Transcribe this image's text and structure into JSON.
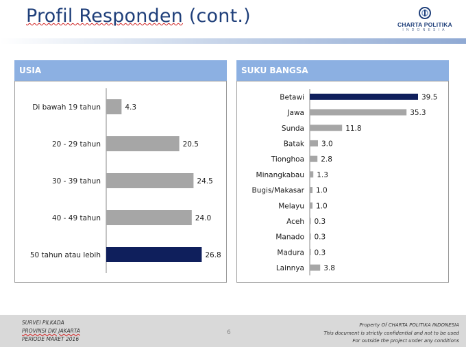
{
  "header": {
    "title": "Profil Responden",
    "title_suffix": " (cont.)",
    "logo_name": "CHARTA POLITIKA",
    "logo_sub": "INDONESIA",
    "logo_icon": "charta-logo-icon"
  },
  "colors": {
    "highlight_bar": "#0f1f5c",
    "default_bar": "#a6a6a6",
    "panel_header": "#8cb0e2",
    "title": "#1f3f7a"
  },
  "chart_data": [
    {
      "type": "bar",
      "orientation": "horizontal",
      "title": "USIA",
      "categories": [
        "Di bawah 19 tahun",
        "20 - 29 tahun",
        "30 - 39 tahun",
        "40 - 49 tahun",
        "50 tahun atau lebih"
      ],
      "values": [
        4.3,
        20.5,
        24.5,
        24.0,
        26.8
      ],
      "value_labels": [
        "4.3",
        "20.5",
        "24.5",
        "24.0",
        "26.8"
      ],
      "highlight_index": 4,
      "xlim": [
        0,
        30
      ],
      "grid": false,
      "legend": "none"
    },
    {
      "type": "bar",
      "orientation": "horizontal",
      "title": "SUKU BANGSA",
      "categories": [
        "Betawi",
        "Jawa",
        "Sunda",
        "Batak",
        "Tionghoa",
        "Minangkabau",
        "Bugis/Makasar",
        "Melayu",
        "Aceh",
        "Manado",
        "Madura",
        "Lainnya"
      ],
      "values": [
        39.5,
        35.3,
        11.8,
        3.0,
        2.8,
        1.3,
        1.0,
        1.0,
        0.3,
        0.3,
        0.3,
        3.8
      ],
      "value_labels": [
        "39.5",
        "35.3",
        "11.8",
        "3.0",
        "2.8",
        "1.3",
        "1.0",
        "1.0",
        "0.3",
        "0.3",
        "0.3",
        "3.8"
      ],
      "highlight_index": 0,
      "xlim": [
        0,
        45
      ],
      "grid": false,
      "legend": "none"
    }
  ],
  "footer": {
    "left_lines": [
      "SURVEI PILKADA",
      "PROVINSI DKI JAKARTA",
      "PERIODE  MARET 2016"
    ],
    "page_number": "6",
    "right_lines": [
      "Property Of CHARTA POLITIKA INDONESIA",
      "This document is strictly confidential and not to be used",
      "For  outside the project under any conditions"
    ]
  }
}
